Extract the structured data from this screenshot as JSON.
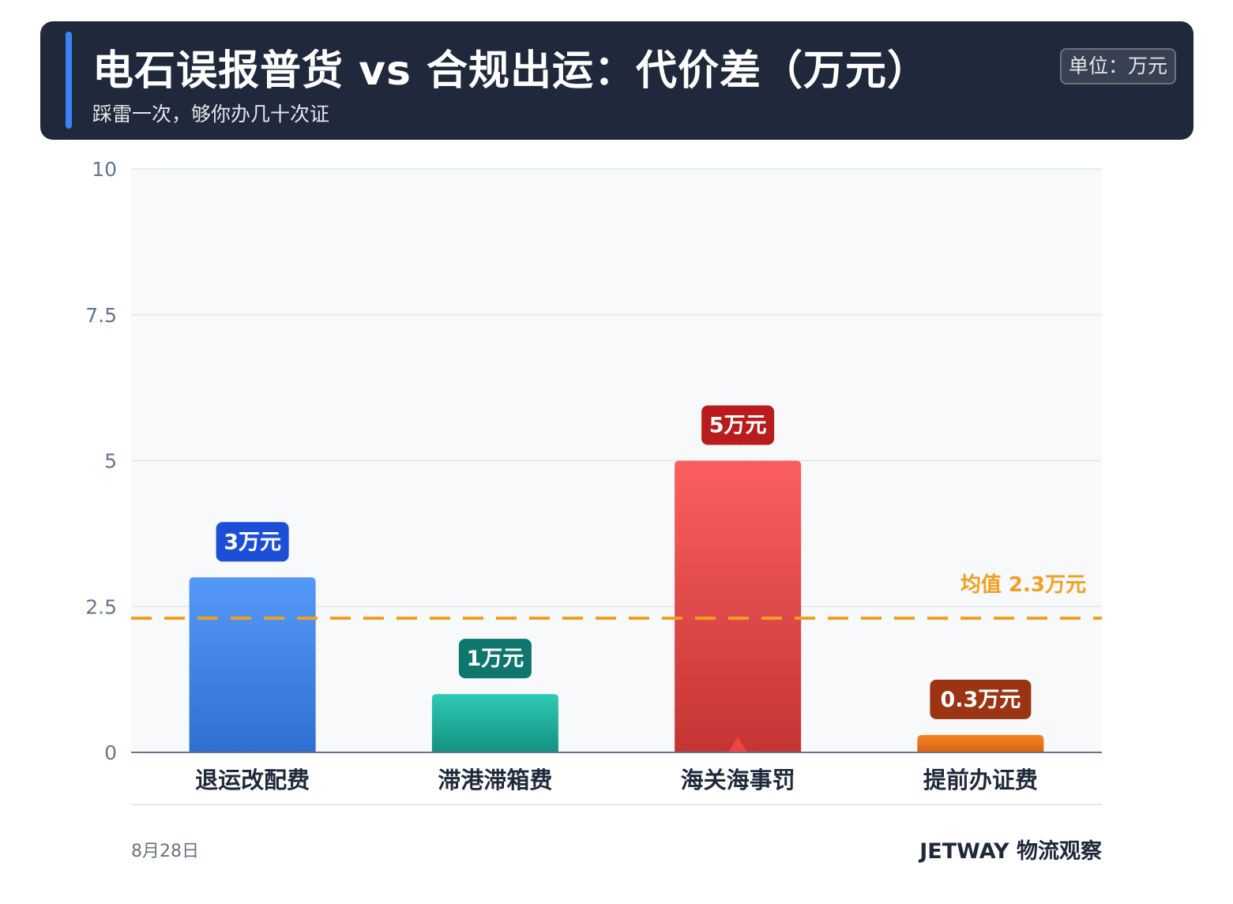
{
  "header": {
    "title": "电石误报普货 vs 合规出运：代价差（万元）",
    "subtitle": "踩雷一次，够你办几十次证",
    "unit_badge": "单位：万元"
  },
  "chart_data": {
    "type": "bar",
    "categories": [
      "退运改配费",
      "滞港滞箱费",
      "海关海事罚",
      "提前办证费"
    ],
    "values": [
      3,
      1,
      5,
      0.3
    ],
    "data_labels": [
      "3万元",
      "1万元",
      "5万元",
      "0.3万元"
    ],
    "label_colors": [
      "#1d4ed8",
      "#0f766e",
      "#b91c1c",
      "#9a3412"
    ],
    "bar_colors": [
      [
        "#5599f7",
        "#2f6fd2"
      ],
      [
        "#2ecbb6",
        "#14907f"
      ],
      [
        "#fb5f5f",
        "#c53434"
      ],
      [
        "#f48726",
        "#d9620f"
      ]
    ],
    "highlight_index": 2,
    "highlight_color": "#ef4444",
    "y_ticks": [
      "0",
      "2.5",
      "5",
      "7.5",
      "10"
    ],
    "ylim": [
      0,
      10
    ],
    "grid": true,
    "mean_line": {
      "value": 2.3,
      "label": "均值 2.3万元",
      "color": "#f0a020"
    },
    "xlabel": "",
    "ylabel": ""
  },
  "footer": {
    "date": "8月28日",
    "brand": "JETWAY 物流观察"
  }
}
